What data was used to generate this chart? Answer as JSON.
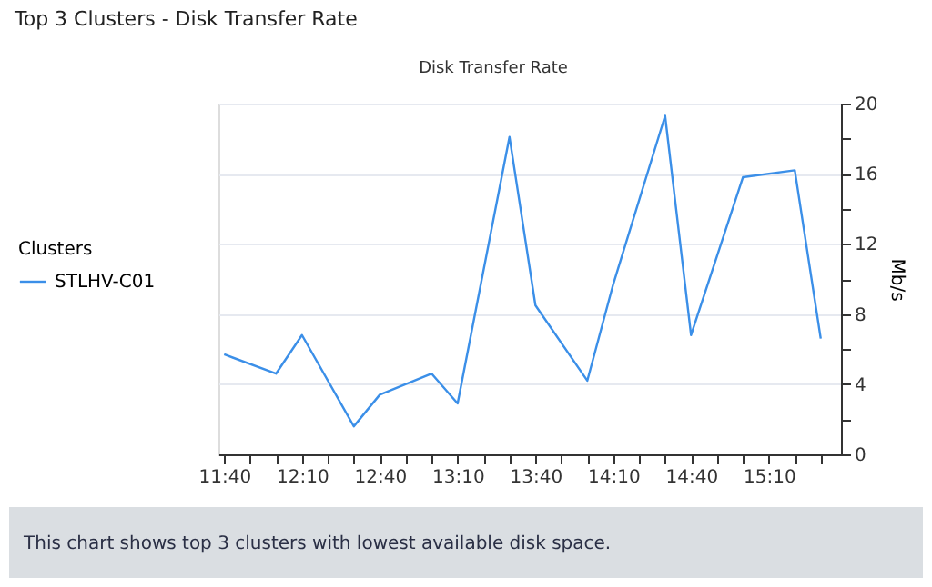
{
  "chart_data": {
    "type": "line",
    "title": "Top 3 Clusters - Disk Transfer Rate",
    "subtitle": "Disk Transfer Rate",
    "ylabel": "Mb/s",
    "legend_title": "Clusters",
    "legend": "left",
    "x": [
      11.6667,
      12.0,
      12.1667,
      12.5,
      12.6667,
      13.0,
      13.1667,
      13.5,
      13.6667,
      14.0,
      14.1667,
      14.5,
      14.6667,
      15.0,
      15.3333,
      15.5
    ],
    "series": [
      {
        "name": "STLHV-C01",
        "color": "#3b8fe8",
        "values": [
          5.7,
          4.6,
          6.8,
          1.6,
          3.4,
          4.6,
          2.9,
          18.1,
          8.5,
          4.2,
          9.7,
          19.3,
          6.8,
          15.8,
          16.2,
          6.6
        ]
      }
    ],
    "xlim": [
      11.63,
      15.63
    ],
    "xticks": [
      {
        "value": 11.6667,
        "label": "11:40"
      },
      {
        "value": 11.8333,
        "label": null
      },
      {
        "value": 12.0,
        "label": null
      },
      {
        "value": 12.1667,
        "label": "12:10"
      },
      {
        "value": 12.3333,
        "label": null
      },
      {
        "value": 12.5,
        "label": null
      },
      {
        "value": 12.6667,
        "label": "12:40"
      },
      {
        "value": 12.8333,
        "label": null
      },
      {
        "value": 13.0,
        "label": null
      },
      {
        "value": 13.1667,
        "label": "13:10"
      },
      {
        "value": 13.3333,
        "label": null
      },
      {
        "value": 13.5,
        "label": null
      },
      {
        "value": 13.6667,
        "label": "13:40"
      },
      {
        "value": 13.8333,
        "label": null
      },
      {
        "value": 14.0,
        "label": null
      },
      {
        "value": 14.1667,
        "label": "14:10"
      },
      {
        "value": 14.3333,
        "label": null
      },
      {
        "value": 14.5,
        "label": null
      },
      {
        "value": 14.6667,
        "label": "14:40"
      },
      {
        "value": 14.8333,
        "label": null
      },
      {
        "value": 15.0,
        "label": null
      },
      {
        "value": 15.1667,
        "label": "15:10"
      },
      {
        "value": 15.3333,
        "label": null
      },
      {
        "value": 15.5,
        "label": null
      }
    ],
    "ylim": [
      0,
      20
    ],
    "yticks": [
      0,
      {
        "value": 2,
        "label": null
      },
      4,
      {
        "value": 6,
        "label": null
      },
      8,
      {
        "value": 10,
        "label": null
      },
      12,
      {
        "value": 14,
        "label": null
      },
      16,
      {
        "value": 18,
        "label": null
      },
      20
    ],
    "grid": "y",
    "marker": "none",
    "line_style": "solid",
    "annotations": [
      "This chart shows top 3 clusters with lowest available disk space."
    ]
  }
}
